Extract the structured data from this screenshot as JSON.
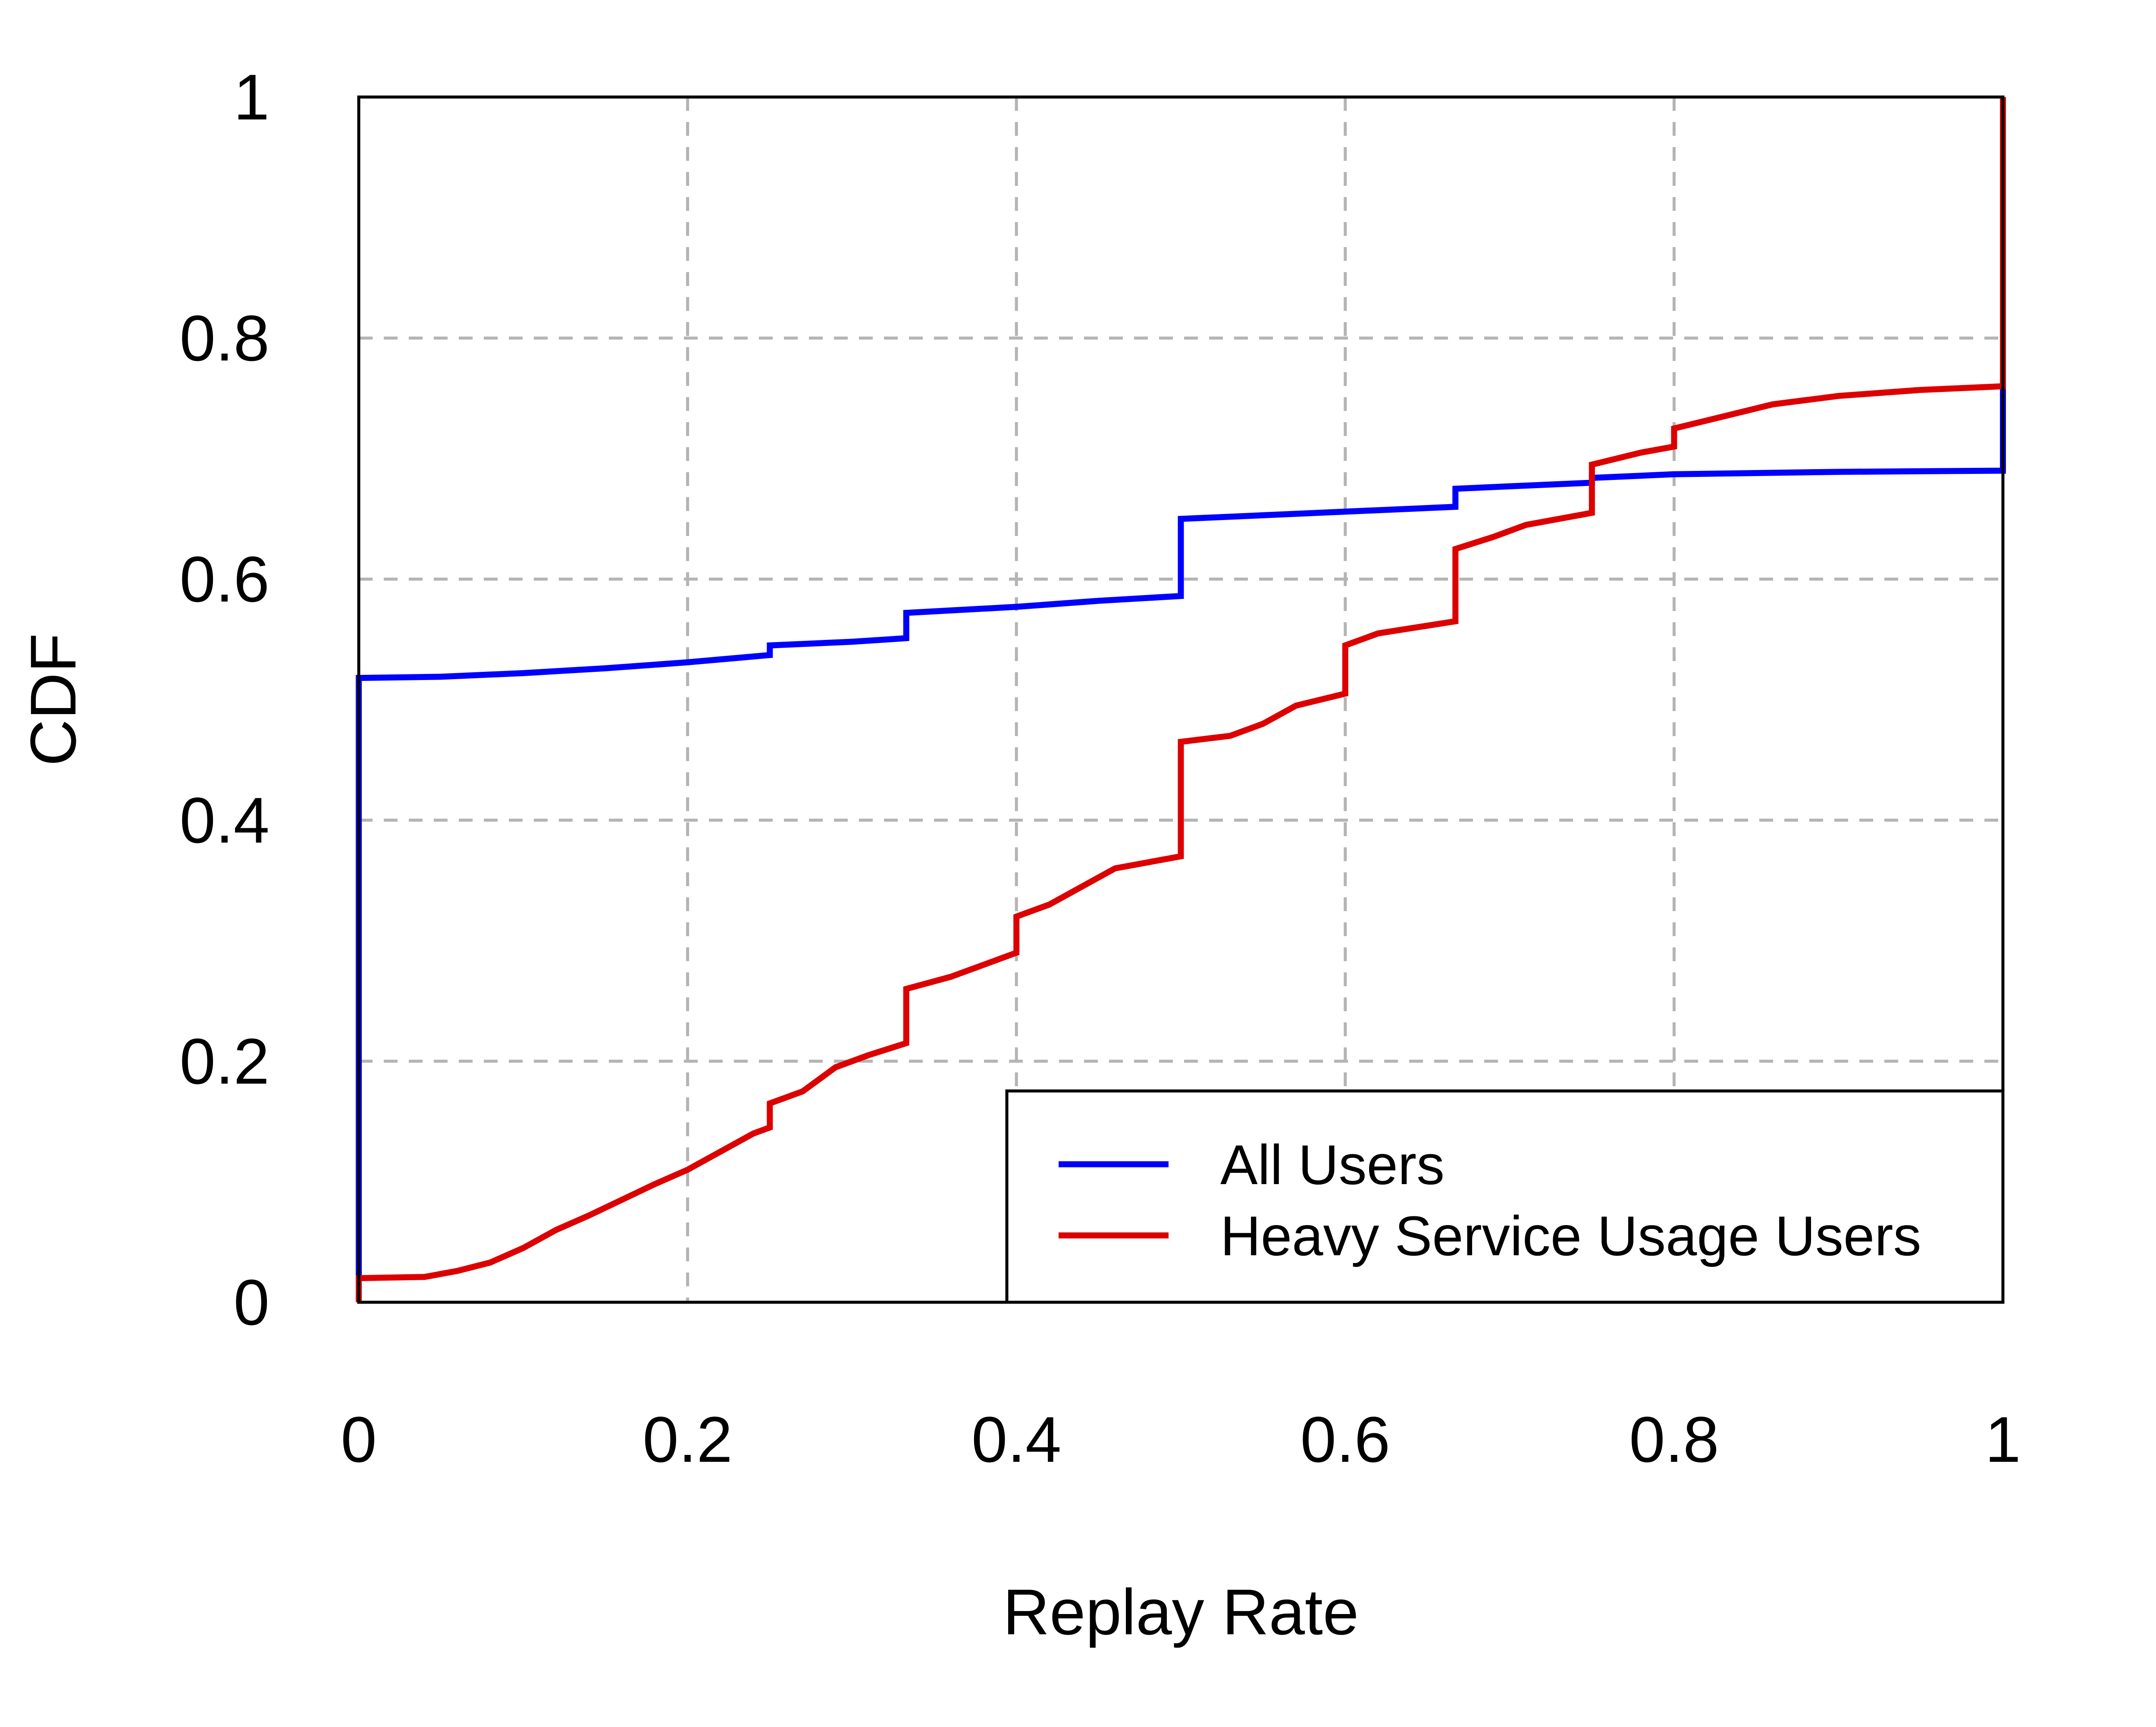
{
  "chart_data": {
    "type": "line",
    "xlabel": "Replay Rate",
    "ylabel": "CDF",
    "xlim": [
      0,
      1
    ],
    "ylim": [
      0,
      1
    ],
    "x_ticks": [
      "0",
      "0.2",
      "0.4",
      "0.6",
      "0.8",
      "1"
    ],
    "y_ticks": [
      "0",
      "0.2",
      "0.4",
      "0.6",
      "0.8",
      "1"
    ],
    "grid": true,
    "legend_position": "bottom-right",
    "series": [
      {
        "name": "All Users",
        "color": "#0000ff",
        "step": true,
        "points": [
          [
            0,
            0
          ],
          [
            0,
            0.518
          ],
          [
            0.05,
            0.519
          ],
          [
            0.1,
            0.522
          ],
          [
            0.15,
            0.526
          ],
          [
            0.2,
            0.531
          ],
          [
            0.25,
            0.537
          ],
          [
            0.25,
            0.545
          ],
          [
            0.3,
            0.548
          ],
          [
            0.333,
            0.551
          ],
          [
            0.333,
            0.572
          ],
          [
            0.4,
            0.577
          ],
          [
            0.45,
            0.582
          ],
          [
            0.5,
            0.586
          ],
          [
            0.5,
            0.65
          ],
          [
            0.55,
            0.653
          ],
          [
            0.6,
            0.656
          ],
          [
            0.667,
            0.66
          ],
          [
            0.667,
            0.675
          ],
          [
            0.7,
            0.677
          ],
          [
            0.75,
            0.68
          ],
          [
            0.75,
            0.684
          ],
          [
            0.8,
            0.687
          ],
          [
            0.9,
            0.689
          ],
          [
            1.0,
            0.69
          ],
          [
            1.0,
            1.0
          ]
        ]
      },
      {
        "name": "Heavy Service Usage Users",
        "color": "#dd0000",
        "step": true,
        "points": [
          [
            0,
            0
          ],
          [
            0,
            0.02
          ],
          [
            0.04,
            0.021
          ],
          [
            0.06,
            0.026
          ],
          [
            0.08,
            0.033
          ],
          [
            0.1,
            0.045
          ],
          [
            0.12,
            0.06
          ],
          [
            0.14,
            0.072
          ],
          [
            0.16,
            0.085
          ],
          [
            0.18,
            0.098
          ],
          [
            0.2,
            0.11
          ],
          [
            0.22,
            0.125
          ],
          [
            0.24,
            0.14
          ],
          [
            0.25,
            0.145
          ],
          [
            0.25,
            0.165
          ],
          [
            0.27,
            0.175
          ],
          [
            0.29,
            0.195
          ],
          [
            0.31,
            0.205
          ],
          [
            0.333,
            0.215
          ],
          [
            0.333,
            0.26
          ],
          [
            0.36,
            0.27
          ],
          [
            0.38,
            0.28
          ],
          [
            0.4,
            0.29
          ],
          [
            0.4,
            0.32
          ],
          [
            0.42,
            0.33
          ],
          [
            0.44,
            0.345
          ],
          [
            0.46,
            0.36
          ],
          [
            0.5,
            0.37
          ],
          [
            0.5,
            0.465
          ],
          [
            0.53,
            0.47
          ],
          [
            0.55,
            0.48
          ],
          [
            0.57,
            0.495
          ],
          [
            0.6,
            0.505
          ],
          [
            0.6,
            0.545
          ],
          [
            0.62,
            0.555
          ],
          [
            0.667,
            0.565
          ],
          [
            0.667,
            0.625
          ],
          [
            0.69,
            0.635
          ],
          [
            0.71,
            0.645
          ],
          [
            0.75,
            0.655
          ],
          [
            0.75,
            0.695
          ],
          [
            0.78,
            0.705
          ],
          [
            0.8,
            0.71
          ],
          [
            0.8,
            0.725
          ],
          [
            0.83,
            0.735
          ],
          [
            0.86,
            0.745
          ],
          [
            0.9,
            0.752
          ],
          [
            0.95,
            0.757
          ],
          [
            1.0,
            0.76
          ],
          [
            1.0,
            1.0
          ]
        ]
      }
    ]
  }
}
